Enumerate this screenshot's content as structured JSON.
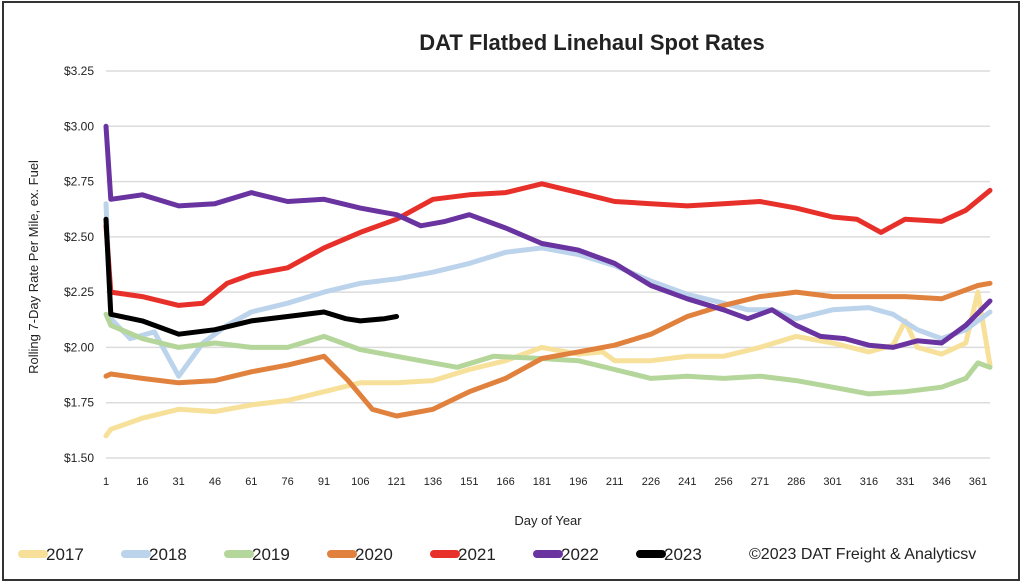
{
  "chart_data": {
    "type": "line",
    "title": "DAT Flatbed Linehaul Spot Rates",
    "xlabel": "Day of Year",
    "ylabel": "Rolling 7-Day Rate Per Mile, ex. Fuel",
    "xlim": [
      1,
      366
    ],
    "ylim": [
      1.5,
      3.25
    ],
    "x_ticks": [
      "1",
      "16",
      "31",
      "46",
      "61",
      "76",
      "91",
      "106",
      "121",
      "136",
      "151",
      "166",
      "181",
      "196",
      "211",
      "226",
      "241",
      "256",
      "271",
      "286",
      "301",
      "316",
      "331",
      "346",
      "361"
    ],
    "y_ticks": [
      "$1.50",
      "$1.75",
      "$2.00",
      "$2.25",
      "$2.50",
      "$2.75",
      "$3.00",
      "$3.25"
    ],
    "grid": "horizontal",
    "legend_position": "bottom",
    "copyright": "©2023 DAT Freight & Analyticsv",
    "series": [
      {
        "name": "2017",
        "color": "#f7e09a",
        "points": [
          [
            1,
            1.6
          ],
          [
            3,
            1.63
          ],
          [
            16,
            1.68
          ],
          [
            31,
            1.72
          ],
          [
            46,
            1.71
          ],
          [
            61,
            1.74
          ],
          [
            76,
            1.76
          ],
          [
            91,
            1.8
          ],
          [
            106,
            1.84
          ],
          [
            121,
            1.84
          ],
          [
            136,
            1.85
          ],
          [
            151,
            1.9
          ],
          [
            166,
            1.94
          ],
          [
            181,
            2.0
          ],
          [
            196,
            1.97
          ],
          [
            206,
            1.98
          ],
          [
            211,
            1.94
          ],
          [
            226,
            1.94
          ],
          [
            241,
            1.96
          ],
          [
            256,
            1.96
          ],
          [
            271,
            2.0
          ],
          [
            286,
            2.05
          ],
          [
            301,
            2.02
          ],
          [
            316,
            1.98
          ],
          [
            326,
            2.01
          ],
          [
            331,
            2.12
          ],
          [
            336,
            2.0
          ],
          [
            346,
            1.97
          ],
          [
            356,
            2.02
          ],
          [
            361,
            2.25
          ],
          [
            366,
            1.92
          ]
        ]
      },
      {
        "name": "2018",
        "color": "#bcd3ec",
        "points": [
          [
            1,
            2.65
          ],
          [
            3,
            2.13
          ],
          [
            11,
            2.04
          ],
          [
            21,
            2.07
          ],
          [
            31,
            1.87
          ],
          [
            41,
            2.02
          ],
          [
            51,
            2.1
          ],
          [
            61,
            2.16
          ],
          [
            76,
            2.2
          ],
          [
            91,
            2.25
          ],
          [
            106,
            2.29
          ],
          [
            121,
            2.31
          ],
          [
            136,
            2.34
          ],
          [
            151,
            2.38
          ],
          [
            166,
            2.43
          ],
          [
            181,
            2.45
          ],
          [
            196,
            2.42
          ],
          [
            211,
            2.37
          ],
          [
            226,
            2.3
          ],
          [
            241,
            2.24
          ],
          [
            256,
            2.2
          ],
          [
            266,
            2.17
          ],
          [
            276,
            2.17
          ],
          [
            286,
            2.13
          ],
          [
            301,
            2.17
          ],
          [
            316,
            2.18
          ],
          [
            326,
            2.15
          ],
          [
            336,
            2.08
          ],
          [
            346,
            2.04
          ],
          [
            356,
            2.08
          ],
          [
            366,
            2.16
          ]
        ]
      },
      {
        "name": "2019",
        "color": "#b5d69b",
        "points": [
          [
            1,
            2.15
          ],
          [
            3,
            2.1
          ],
          [
            16,
            2.04
          ],
          [
            31,
            2.0
          ],
          [
            46,
            2.02
          ],
          [
            61,
            2.0
          ],
          [
            76,
            2.0
          ],
          [
            91,
            2.05
          ],
          [
            106,
            1.99
          ],
          [
            121,
            1.96
          ],
          [
            136,
            1.93
          ],
          [
            146,
            1.91
          ],
          [
            161,
            1.96
          ],
          [
            181,
            1.95
          ],
          [
            196,
            1.94
          ],
          [
            211,
            1.9
          ],
          [
            226,
            1.86
          ],
          [
            241,
            1.87
          ],
          [
            256,
            1.86
          ],
          [
            271,
            1.87
          ],
          [
            286,
            1.85
          ],
          [
            301,
            1.82
          ],
          [
            316,
            1.79
          ],
          [
            331,
            1.8
          ],
          [
            346,
            1.82
          ],
          [
            356,
            1.86
          ],
          [
            361,
            1.93
          ],
          [
            366,
            1.91
          ]
        ]
      },
      {
        "name": "2020",
        "color": "#e0823e",
        "points": [
          [
            1,
            1.87
          ],
          [
            3,
            1.88
          ],
          [
            16,
            1.86
          ],
          [
            31,
            1.84
          ],
          [
            46,
            1.85
          ],
          [
            61,
            1.89
          ],
          [
            76,
            1.92
          ],
          [
            91,
            1.96
          ],
          [
            101,
            1.85
          ],
          [
            111,
            1.72
          ],
          [
            121,
            1.69
          ],
          [
            136,
            1.72
          ],
          [
            151,
            1.8
          ],
          [
            166,
            1.86
          ],
          [
            181,
            1.95
          ],
          [
            196,
            1.98
          ],
          [
            211,
            2.01
          ],
          [
            226,
            2.06
          ],
          [
            241,
            2.14
          ],
          [
            256,
            2.19
          ],
          [
            271,
            2.23
          ],
          [
            286,
            2.25
          ],
          [
            301,
            2.23
          ],
          [
            316,
            2.23
          ],
          [
            331,
            2.23
          ],
          [
            346,
            2.22
          ],
          [
            361,
            2.28
          ],
          [
            366,
            2.29
          ]
        ]
      },
      {
        "name": "2021",
        "color": "#e8302a",
        "points": [
          [
            1,
            2.55
          ],
          [
            3,
            2.25
          ],
          [
            16,
            2.23
          ],
          [
            31,
            2.19
          ],
          [
            41,
            2.2
          ],
          [
            51,
            2.29
          ],
          [
            61,
            2.33
          ],
          [
            76,
            2.36
          ],
          [
            91,
            2.45
          ],
          [
            106,
            2.52
          ],
          [
            121,
            2.58
          ],
          [
            136,
            2.67
          ],
          [
            151,
            2.69
          ],
          [
            166,
            2.7
          ],
          [
            181,
            2.74
          ],
          [
            196,
            2.7
          ],
          [
            211,
            2.66
          ],
          [
            226,
            2.65
          ],
          [
            241,
            2.64
          ],
          [
            256,
            2.65
          ],
          [
            271,
            2.66
          ],
          [
            286,
            2.63
          ],
          [
            301,
            2.59
          ],
          [
            311,
            2.58
          ],
          [
            321,
            2.52
          ],
          [
            331,
            2.58
          ],
          [
            346,
            2.57
          ],
          [
            356,
            2.62
          ],
          [
            366,
            2.71
          ]
        ]
      },
      {
        "name": "2022",
        "color": "#6a34a0",
        "points": [
          [
            1,
            3.0
          ],
          [
            3,
            2.67
          ],
          [
            16,
            2.69
          ],
          [
            31,
            2.64
          ],
          [
            46,
            2.65
          ],
          [
            61,
            2.7
          ],
          [
            76,
            2.66
          ],
          [
            91,
            2.67
          ],
          [
            106,
            2.63
          ],
          [
            121,
            2.6
          ],
          [
            131,
            2.55
          ],
          [
            141,
            2.57
          ],
          [
            151,
            2.6
          ],
          [
            166,
            2.54
          ],
          [
            181,
            2.47
          ],
          [
            196,
            2.44
          ],
          [
            211,
            2.38
          ],
          [
            226,
            2.28
          ],
          [
            241,
            2.22
          ],
          [
            256,
            2.17
          ],
          [
            266,
            2.13
          ],
          [
            276,
            2.17
          ],
          [
            286,
            2.1
          ],
          [
            296,
            2.05
          ],
          [
            306,
            2.04
          ],
          [
            316,
            2.01
          ],
          [
            326,
            2.0
          ],
          [
            336,
            2.03
          ],
          [
            346,
            2.02
          ],
          [
            356,
            2.1
          ],
          [
            366,
            2.21
          ]
        ]
      },
      {
        "name": "2023",
        "color": "#000000",
        "points": [
          [
            1,
            2.58
          ],
          [
            3,
            2.15
          ],
          [
            16,
            2.12
          ],
          [
            31,
            2.06
          ],
          [
            46,
            2.08
          ],
          [
            61,
            2.12
          ],
          [
            76,
            2.14
          ],
          [
            91,
            2.16
          ],
          [
            100,
            2.13
          ],
          [
            106,
            2.12
          ],
          [
            116,
            2.13
          ],
          [
            121,
            2.14
          ]
        ]
      }
    ]
  }
}
